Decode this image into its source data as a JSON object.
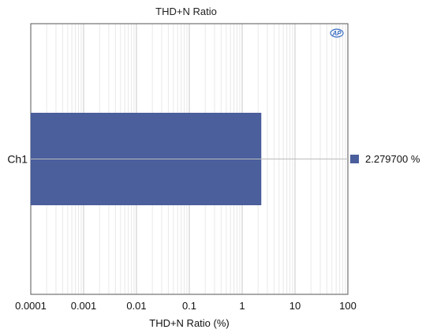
{
  "chart_data": {
    "type": "bar",
    "orientation": "horizontal",
    "title": "THD+N Ratio",
    "xlabel": "THD+N Ratio (%)",
    "ylabel": "",
    "x_scale": "log",
    "xlim": [
      0.0001,
      100
    ],
    "x_ticks": [
      "0.0001",
      "0.001",
      "0.01",
      "0.1",
      "1",
      "10",
      "100"
    ],
    "categories": [
      "Ch1"
    ],
    "series": [
      {
        "values": [
          2.2797
        ],
        "color": "#4a5f9c"
      }
    ],
    "grid": true,
    "legend": {
      "position": "right",
      "entries": [
        {
          "label": "2.279700  %",
          "color": "#4a5f9c"
        }
      ]
    },
    "logo": "AP"
  }
}
